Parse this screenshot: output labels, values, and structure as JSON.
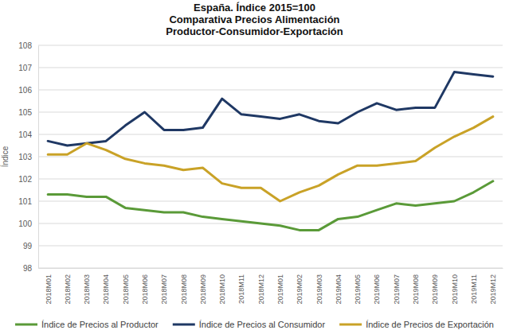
{
  "chart_data": {
    "type": "line",
    "title": "España. Índice 2015=100",
    "subtitle": [
      "Comparativa Precios Alimentación",
      "Productor-Consumidor-Exportación"
    ],
    "y_label": "Índice",
    "categories": [
      "2018M01",
      "2018M02",
      "2018M03",
      "2018M04",
      "2018M05",
      "2018M06",
      "2018M07",
      "2018M08",
      "2018M09",
      "2018M10",
      "2018M11",
      "2018M12",
      "2019M01",
      "2019M02",
      "2019M03",
      "2019M04",
      "2019M05",
      "2019M06",
      "2019M07",
      "2019M08",
      "2019M09",
      "2019M10",
      "2019M11",
      "2019M12"
    ],
    "series": [
      {
        "name": "Índice de Precios al Productor",
        "color": "#5a9a38",
        "values": [
          101.3,
          101.3,
          101.2,
          101.2,
          100.7,
          100.6,
          100.5,
          100.5,
          100.3,
          100.2,
          100.1,
          100.0,
          99.9,
          99.7,
          99.7,
          100.2,
          100.3,
          100.6,
          100.9,
          100.8,
          100.9,
          101.0,
          101.4,
          101.9
        ]
      },
      {
        "name": "Índice de Precios al Consumidor",
        "color": "#1f3864",
        "values": [
          103.7,
          103.5,
          103.6,
          103.7,
          104.4,
          105.0,
          104.2,
          104.2,
          104.3,
          105.6,
          104.9,
          104.8,
          104.7,
          104.9,
          104.6,
          104.5,
          105.0,
          105.4,
          105.1,
          105.2,
          105.2,
          106.8,
          106.7,
          106.6
        ]
      },
      {
        "name": "Índice de Precios de Exportación",
        "color": "#c9a227",
        "values": [
          103.1,
          103.1,
          103.6,
          103.3,
          102.9,
          102.7,
          102.6,
          102.4,
          102.5,
          101.8,
          101.6,
          101.6,
          101.0,
          101.4,
          101.7,
          102.2,
          102.6,
          102.6,
          102.7,
          102.8,
          103.4,
          103.9,
          104.3,
          104.8
        ]
      }
    ],
    "ylim": [
      98,
      108
    ],
    "yticks": [
      98,
      99,
      100,
      101,
      102,
      103,
      104,
      105,
      106,
      107,
      108
    ],
    "grid": true,
    "legend": "bottom"
  }
}
